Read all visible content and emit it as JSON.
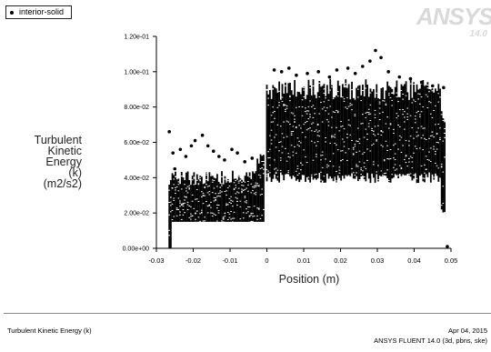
{
  "legend": {
    "label": "interior-solid"
  },
  "logo": {
    "text": "ANSYS",
    "version": "14.0"
  },
  "footer": {
    "left": "Turbulent Kinetic Energy (k)",
    "date": "Apr 04, 2015",
    "version": "ANSYS FLUENT 14.0 (3d, pbns, ske)"
  },
  "chart_data": {
    "type": "scatter",
    "title": "",
    "xlabel": "Position (m)",
    "ylabel_lines": [
      "Turbulent",
      "Kinetic",
      "Energy",
      "(k)",
      "(m2/s2)"
    ],
    "xlim": [
      -0.03,
      0.05
    ],
    "ylim": [
      0,
      0.12
    ],
    "xticks": [
      -0.03,
      -0.02,
      -0.01,
      0,
      0.01,
      0.02,
      0.03,
      0.04,
      0.05
    ],
    "xtick_labels": [
      "-0.03",
      "-0.02",
      "-0.01",
      "0",
      "0.01",
      "0.02",
      "0.03",
      "0.04",
      "0.05"
    ],
    "yticks": [
      0,
      0.02,
      0.04,
      0.06,
      0.08,
      0.1,
      0.12
    ],
    "ytick_labels": [
      "0.00e+00",
      "2.00e-02",
      "4.00e-02",
      "6.00e-02",
      "8.00e-02",
      "1.00e-01",
      "1.20e-01"
    ],
    "grid": false,
    "series": [
      {
        "name": "interior-solid",
        "bands": [
          {
            "x_from": -0.0265,
            "x_to": -0.0005,
            "y_low": 0.015,
            "y_high": 0.04,
            "y_low_at_x_from": 0.0,
            "y_high_at_x_to": 0.05
          },
          {
            "x_from": 0.0,
            "x_to": 0.0485,
            "y_low": 0.04,
            "y_high": 0.09,
            "y_low_at_x_to": 0.022,
            "y_high_at_x_to": 0.075
          }
        ],
        "outliers": [
          {
            "x": -0.0265,
            "y": 0.066
          },
          {
            "x": -0.0255,
            "y": 0.054
          },
          {
            "x": -0.025,
            "y": 0.045
          },
          {
            "x": -0.0235,
            "y": 0.056
          },
          {
            "x": -0.022,
            "y": 0.052
          },
          {
            "x": -0.0205,
            "y": 0.058
          },
          {
            "x": -0.0195,
            "y": 0.061
          },
          {
            "x": -0.0175,
            "y": 0.064
          },
          {
            "x": -0.016,
            "y": 0.058
          },
          {
            "x": -0.0145,
            "y": 0.055
          },
          {
            "x": -0.013,
            "y": 0.052
          },
          {
            "x": -0.0115,
            "y": 0.05
          },
          {
            "x": -0.0095,
            "y": 0.056
          },
          {
            "x": -0.008,
            "y": 0.054
          },
          {
            "x": -0.006,
            "y": 0.049
          },
          {
            "x": -0.004,
            "y": 0.051
          },
          {
            "x": -0.002,
            "y": 0.047
          },
          {
            "x": 0.002,
            "y": 0.101
          },
          {
            "x": 0.004,
            "y": 0.1
          },
          {
            "x": 0.006,
            "y": 0.102
          },
          {
            "x": 0.008,
            "y": 0.098
          },
          {
            "x": 0.011,
            "y": 0.099
          },
          {
            "x": 0.014,
            "y": 0.1
          },
          {
            "x": 0.017,
            "y": 0.097
          },
          {
            "x": 0.019,
            "y": 0.101
          },
          {
            "x": 0.022,
            "y": 0.102
          },
          {
            "x": 0.024,
            "y": 0.099
          },
          {
            "x": 0.026,
            "y": 0.103
          },
          {
            "x": 0.028,
            "y": 0.106
          },
          {
            "x": 0.0295,
            "y": 0.112
          },
          {
            "x": 0.031,
            "y": 0.108
          },
          {
            "x": 0.033,
            "y": 0.1
          },
          {
            "x": 0.036,
            "y": 0.097
          },
          {
            "x": 0.039,
            "y": 0.096
          },
          {
            "x": 0.042,
            "y": 0.094
          },
          {
            "x": 0.045,
            "y": 0.092
          },
          {
            "x": 0.048,
            "y": 0.091
          },
          {
            "x": 0.049,
            "y": 0.001
          }
        ]
      }
    ]
  }
}
